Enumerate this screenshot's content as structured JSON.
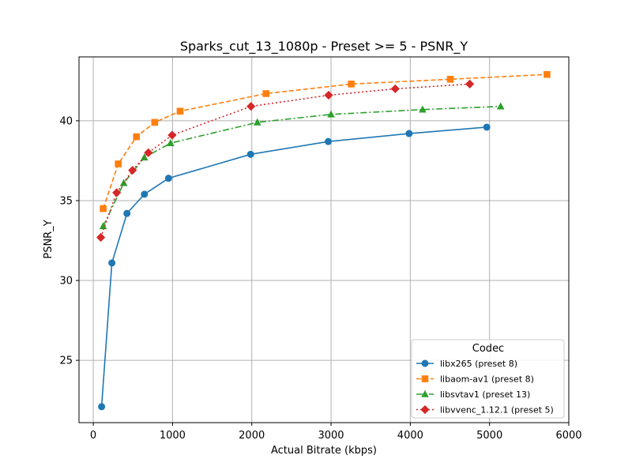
{
  "chart_data": {
    "type": "line",
    "title": "Sparks_cut_13_1080p - Preset >= 5 - PSNR_Y",
    "xlabel": "Actual Bitrate (kbps)",
    "ylabel": "PSNR_Y",
    "xlim": [
      -180,
      6000
    ],
    "ylim": [
      21.1,
      44.0
    ],
    "xticks": [
      0,
      1000,
      2000,
      3000,
      4000,
      5000,
      6000
    ],
    "yticks": [
      25,
      30,
      35,
      40
    ],
    "grid": true,
    "legend": {
      "title": "Codec",
      "position": "lower-right"
    },
    "series": [
      {
        "name": "libx265 (preset 8)",
        "color": "#1f77b4",
        "marker": "circle",
        "linestyle": "solid",
        "x": [
          105,
          235,
          425,
          645,
          950,
          1985,
          2965,
          3985,
          4965
        ],
        "y": [
          22.1,
          31.1,
          34.2,
          35.4,
          36.4,
          37.9,
          38.7,
          39.2,
          39.6
        ]
      },
      {
        "name": "libaom-av1 (preset 8)",
        "color": "#ff7f0e",
        "marker": "square",
        "linestyle": "dashed",
        "x": [
          125,
          315,
          545,
          775,
          1095,
          2180,
          3255,
          4505,
          5725
        ],
        "y": [
          34.5,
          37.3,
          39.0,
          39.9,
          40.6,
          41.7,
          42.3,
          42.6,
          42.9
        ]
      },
      {
        "name": "libsvtav1 (preset 13)",
        "color": "#2ca02c",
        "marker": "triangle",
        "linestyle": "dashdot",
        "x": [
          125,
          385,
          645,
          975,
          2070,
          3000,
          4155,
          5140
        ],
        "y": [
          33.4,
          36.1,
          37.7,
          38.6,
          39.9,
          40.4,
          40.7,
          40.9
        ]
      },
      {
        "name": "libvvenc_1.12.1 (preset 5)",
        "color": "#d62728",
        "marker": "diamond",
        "linestyle": "dotted",
        "x": [
          95,
          295,
          495,
          695,
          995,
          1990,
          2970,
          3810,
          4750
        ],
        "y": [
          32.7,
          35.5,
          36.9,
          38.0,
          39.1,
          40.9,
          41.6,
          42.0,
          42.3
        ]
      }
    ]
  }
}
